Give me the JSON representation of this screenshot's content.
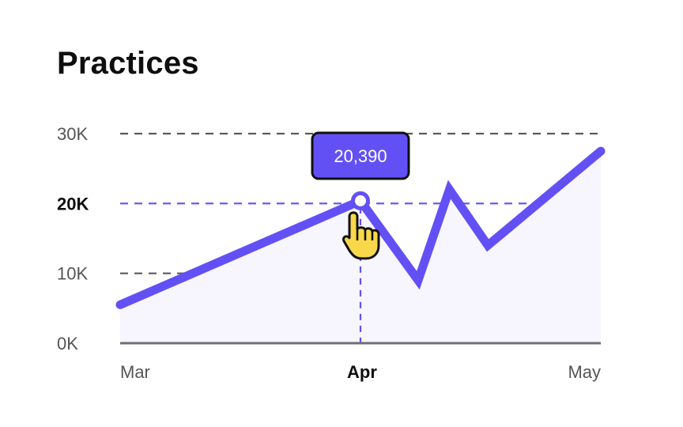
{
  "colors": {
    "line": "#6350F5",
    "area": "#F7F6FE",
    "grid": "#5A5A5A",
    "axis": "#6E6E73",
    "tooltip_bg": "#6350F5",
    "tooltip_border": "#111111",
    "cursor_fill": "#F8D84A",
    "text": "#0E0E10",
    "tick": "#555555"
  },
  "chart_data": {
    "type": "area",
    "title": "Practices",
    "xlabel": "",
    "ylabel": "",
    "x_tick_labels": [
      "Mar",
      "Apr",
      "May"
    ],
    "y_tick_labels": [
      "0K",
      "10K",
      "20K",
      "30K"
    ],
    "y_ticks": [
      0,
      10000,
      20000,
      30000
    ],
    "x_range": [
      0,
      2
    ],
    "ylim": [
      0,
      30000
    ],
    "grid": true,
    "legend": "none",
    "series": [
      {
        "x": [
          0,
          1,
          1.24,
          1.37,
          1.53,
          2
        ],
        "values": [
          5500,
          20390,
          9000,
          22000,
          14000,
          27500
        ]
      }
    ],
    "highlight": {
      "x_label": "Apr",
      "y_label": "20K",
      "x": 1,
      "value": 20390,
      "tooltip": "20,390",
      "cursor_icon": "hand-pointer-icon"
    }
  }
}
